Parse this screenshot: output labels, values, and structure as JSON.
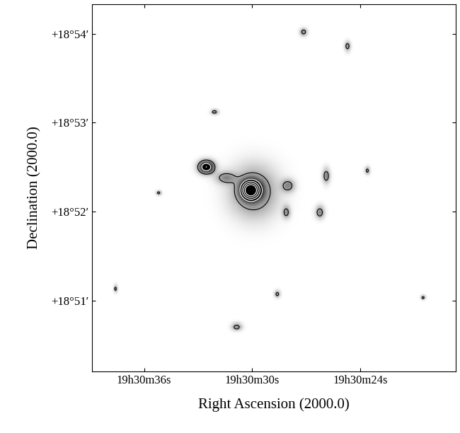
{
  "chart_data": {
    "type": "contour",
    "x_label": "Right Ascension (2000.0)",
    "y_label": "Declination (2000.0)",
    "xlim": [
      38.9,
      18.7
    ],
    "ylim": [
      50.2,
      54.33
    ],
    "xticks": [
      {
        "value": 36,
        "label": "19h30m36s"
      },
      {
        "value": 30,
        "label": "19h30m30s"
      },
      {
        "value": 24,
        "label": "19h30m24s"
      }
    ],
    "yticks": [
      {
        "value": 51,
        "label": "+18°51′"
      },
      {
        "value": 52,
        "label": "+18°52′"
      },
      {
        "value": 53,
        "label": "+18°53′"
      },
      {
        "value": 54,
        "label": "+18°54′"
      }
    ],
    "image_range": [
      0,
      3
    ],
    "contour_levels": [
      1,
      2.5,
      3.5,
      4.5,
      5.5
    ],
    "sources": [
      {
        "ra": 30.08,
        "dec": 52.24,
        "peak": 6.0,
        "sigma_ra": 0.35,
        "sigma_dec": 0.07
      },
      {
        "ra": 29.9,
        "dec": 52.22,
        "peak": 1.6,
        "sigma_ra": 0.9,
        "sigma_dec": 0.2
      },
      {
        "ra": 32.55,
        "dec": 52.5,
        "peak": 3.5,
        "sigma_ra": 0.3,
        "sigma_dec": 0.05
      },
      {
        "ra": 31.5,
        "dec": 52.38,
        "peak": 1.2,
        "sigma_ra": 0.4,
        "sigma_dec": 0.05
      },
      {
        "ra": 28.0,
        "dec": 52.29,
        "peak": 1.3,
        "sigma_ra": 0.25,
        "sigma_dec": 0.05
      },
      {
        "ra": 28.1,
        "dec": 51.99,
        "peak": 1.2,
        "sigma_ra": 0.15,
        "sigma_dec": 0.05
      },
      {
        "ra": 25.88,
        "dec": 52.4,
        "peak": 1.4,
        "sigma_ra": 0.15,
        "sigma_dec": 0.06
      },
      {
        "ra": 26.24,
        "dec": 51.99,
        "peak": 1.4,
        "sigma_ra": 0.18,
        "sigma_dec": 0.05
      },
      {
        "ra": 27.14,
        "dec": 54.02,
        "peak": 1.3,
        "sigma_ra": 0.15,
        "sigma_dec": 0.03
      },
      {
        "ra": 24.7,
        "dec": 53.86,
        "peak": 1.3,
        "sigma_ra": 0.12,
        "sigma_dec": 0.04
      },
      {
        "ra": 23.6,
        "dec": 52.46,
        "peak": 1.2,
        "sigma_ra": 0.1,
        "sigma_dec": 0.03
      },
      {
        "ra": 32.1,
        "dec": 53.12,
        "peak": 1.3,
        "sigma_ra": 0.15,
        "sigma_dec": 0.02
      },
      {
        "ra": 30.86,
        "dec": 50.7,
        "peak": 1.3,
        "sigma_ra": 0.2,
        "sigma_dec": 0.03
      },
      {
        "ra": 28.6,
        "dec": 51.07,
        "peak": 1.2,
        "sigma_ra": 0.12,
        "sigma_dec": 0.03
      },
      {
        "ra": 20.5,
        "dec": 51.03,
        "peak": 1.2,
        "sigma_ra": 0.1,
        "sigma_dec": 0.02
      },
      {
        "ra": 37.6,
        "dec": 51.13,
        "peak": 1.2,
        "sigma_ra": 0.08,
        "sigma_dec": 0.03
      },
      {
        "ra": 35.2,
        "dec": 52.21,
        "peak": 1.2,
        "sigma_ra": 0.1,
        "sigma_dec": 0.02
      }
    ]
  }
}
